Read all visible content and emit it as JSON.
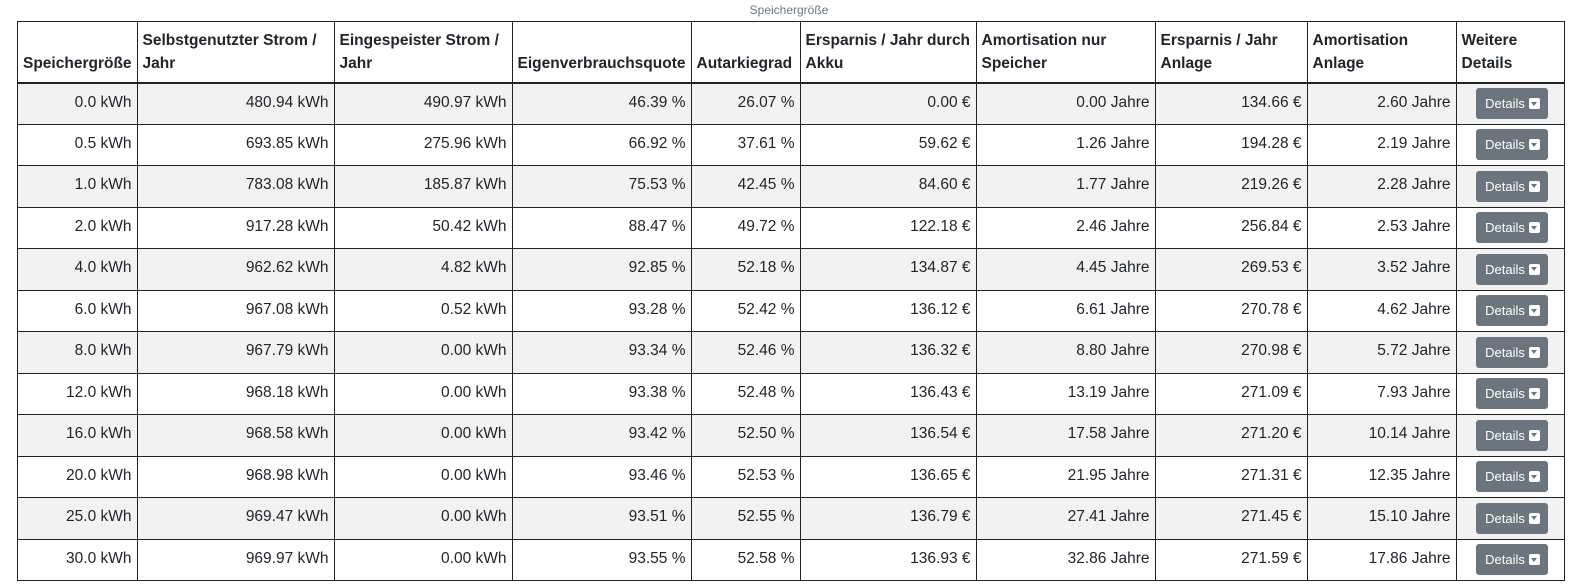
{
  "caption": "Speichergröße",
  "columns": [
    "Speichergröße",
    "Selbstgenutzter Strom / Jahr",
    "Eingespeister Strom / Jahr",
    "Eigenverbrauchsquote",
    "Autarkiegrad",
    "Ersparnis / Jahr durch Akku",
    "Amortisation nur Speicher",
    "Ersparnis / Jahr Anlage",
    "Amortisation Anlage",
    "Weitere Details"
  ],
  "button_label": "Details",
  "colors": {
    "button": "#6c757d",
    "stripe": "#f2f2f2",
    "border": "#222222"
  },
  "rows": [
    [
      "0.0 kWh",
      "480.94 kWh",
      "490.97 kWh",
      "46.39 %",
      "26.07 %",
      "0.00 €",
      "0.00 Jahre",
      "134.66 €",
      "2.60 Jahre"
    ],
    [
      "0.5 kWh",
      "693.85 kWh",
      "275.96 kWh",
      "66.92 %",
      "37.61 %",
      "59.62 €",
      "1.26 Jahre",
      "194.28 €",
      "2.19 Jahre"
    ],
    [
      "1.0 kWh",
      "783.08 kWh",
      "185.87 kWh",
      "75.53 %",
      "42.45 %",
      "84.60 €",
      "1.77 Jahre",
      "219.26 €",
      "2.28 Jahre"
    ],
    [
      "2.0 kWh",
      "917.28 kWh",
      "50.42 kWh",
      "88.47 %",
      "49.72 %",
      "122.18 €",
      "2.46 Jahre",
      "256.84 €",
      "2.53 Jahre"
    ],
    [
      "4.0 kWh",
      "962.62 kWh",
      "4.82 kWh",
      "92.85 %",
      "52.18 %",
      "134.87 €",
      "4.45 Jahre",
      "269.53 €",
      "3.52 Jahre"
    ],
    [
      "6.0 kWh",
      "967.08 kWh",
      "0.52 kWh",
      "93.28 %",
      "52.42 %",
      "136.12 €",
      "6.61 Jahre",
      "270.78 €",
      "4.62 Jahre"
    ],
    [
      "8.0 kWh",
      "967.79 kWh",
      "0.00 kWh",
      "93.34 %",
      "52.46 %",
      "136.32 €",
      "8.80 Jahre",
      "270.98 €",
      "5.72 Jahre"
    ],
    [
      "12.0 kWh",
      "968.18 kWh",
      "0.00 kWh",
      "93.38 %",
      "52.48 %",
      "136.43 €",
      "13.19 Jahre",
      "271.09 €",
      "7.93 Jahre"
    ],
    [
      "16.0 kWh",
      "968.58 kWh",
      "0.00 kWh",
      "93.42 %",
      "52.50 %",
      "136.54 €",
      "17.58 Jahre",
      "271.20 €",
      "10.14 Jahre"
    ],
    [
      "20.0 kWh",
      "968.98 kWh",
      "0.00 kWh",
      "93.46 %",
      "52.53 %",
      "136.65 €",
      "21.95 Jahre",
      "271.31 €",
      "12.35 Jahre"
    ],
    [
      "25.0 kWh",
      "969.47 kWh",
      "0.00 kWh",
      "93.51 %",
      "52.55 %",
      "136.79 €",
      "27.41 Jahre",
      "271.45 €",
      "15.10 Jahre"
    ],
    [
      "30.0 kWh",
      "969.97 kWh",
      "0.00 kWh",
      "93.55 %",
      "52.58 %",
      "136.93 €",
      "32.86 Jahre",
      "271.59 €",
      "17.86 Jahre"
    ]
  ]
}
